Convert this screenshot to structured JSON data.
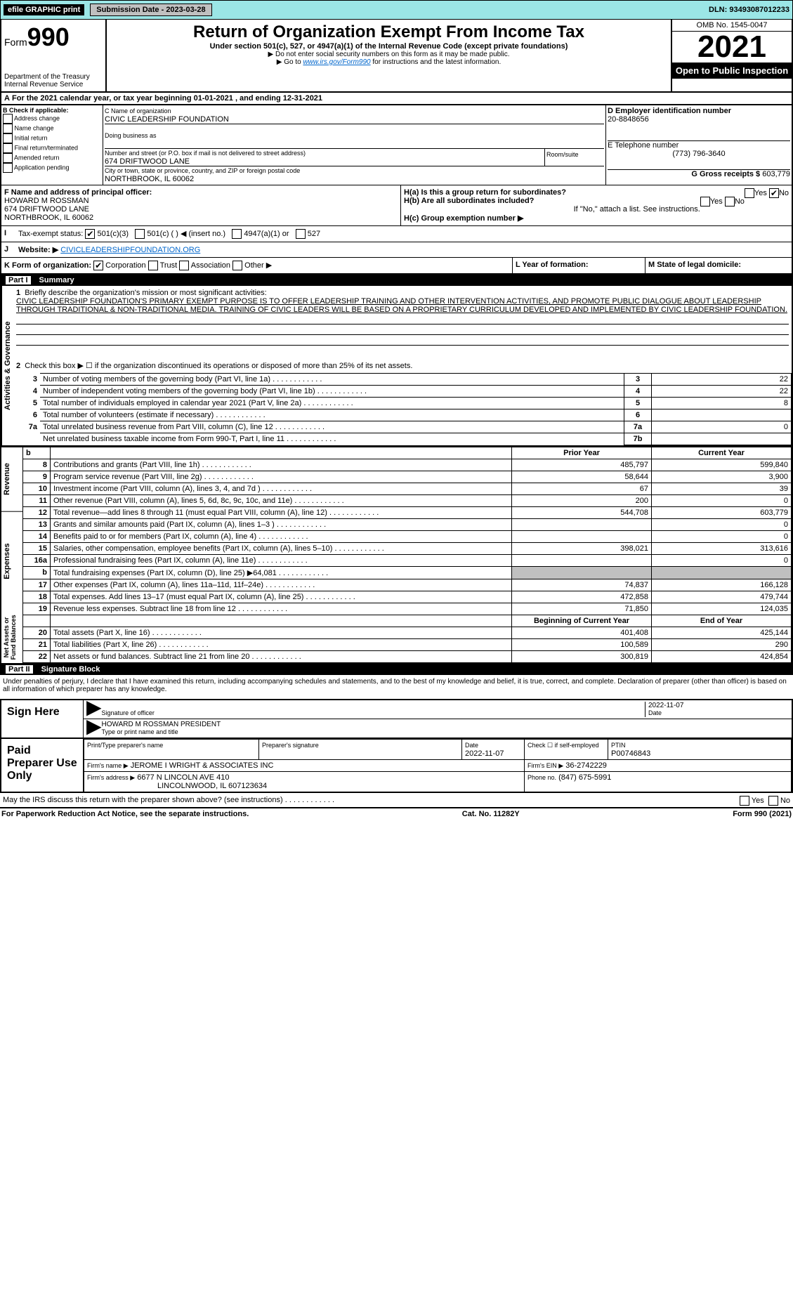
{
  "topbar": {
    "efile": "efile GRAPHIC print",
    "sub_label": "Submission Date - 2023-03-28",
    "dln": "DLN: 93493087012233"
  },
  "header": {
    "form_word": "Form",
    "form_num": "990",
    "title": "Return of Organization Exempt From Income Tax",
    "sub1": "Under section 501(c), 527, or 4947(a)(1) of the Internal Revenue Code (except private foundations)",
    "sub2": "▶ Do not enter social security numbers on this form as it may be made public.",
    "sub3": "▶ Go to www.irs.gov/Form990 for instructions and the latest information.",
    "dept": "Department of the Treasury\nInternal Revenue Service",
    "omb": "OMB No. 1545-0047",
    "year": "2021",
    "otp": "Open to Public Inspection"
  },
  "A": {
    "text": "For the 2021 calendar year, or tax year beginning 01-01-2021     , and ending 12-31-2021"
  },
  "B": {
    "label": "B Check if applicable:",
    "items": [
      "Address change",
      "Name change",
      "Initial return",
      "Final return/terminated",
      "Amended return",
      "Application pending"
    ]
  },
  "C": {
    "name_lbl": "C Name of organization",
    "name": "CIVIC LEADERSHIP FOUNDATION",
    "dba_lbl": "Doing business as",
    "dba": "",
    "addr_lbl": "Number and street (or P.O. box if mail is not delivered to street address)",
    "room_lbl": "Room/suite",
    "addr": "674 DRIFTWOOD LANE",
    "city_lbl": "City or town, state or province, country, and ZIP or foreign postal code",
    "city": "NORTHBROOK, IL  60062"
  },
  "D": {
    "lbl": "D Employer identification number",
    "val": "20-8848656"
  },
  "E": {
    "lbl": "E Telephone number",
    "val": "(773) 796-3640"
  },
  "G": {
    "lbl": "G Gross receipts $",
    "val": "603,779"
  },
  "F": {
    "lbl": "F  Name and address of principal officer:",
    "name": "HOWARD M ROSSMAN",
    "addr": "674 DRIFTWOOD LANE",
    "city": "NORTHBROOK, IL  60062"
  },
  "H": {
    "a_lbl": "H(a)  Is this a group return for subordinates?",
    "a_yes": "Yes",
    "a_no": "No",
    "b_lbl": "H(b)  Are all subordinates included?",
    "b_yes": "Yes",
    "b_no": "No",
    "b_note": "If \"No,\" attach a list. See instructions.",
    "c_lbl": "H(c)  Group exemption number ▶"
  },
  "I": {
    "lbl": "Tax-exempt status:",
    "o1": "501(c)(3)",
    "o2": "501(c) (   ) ◀ (insert no.)",
    "o3": "4947(a)(1) or",
    "o4": "527"
  },
  "J": {
    "lbl": "Website: ▶",
    "val": "CIVICLEADERSHIPFOUNDATION.ORG"
  },
  "K": {
    "lbl": "K Form of organization:",
    "o1": "Corporation",
    "o2": "Trust",
    "o3": "Association",
    "o4": "Other ▶"
  },
  "L": {
    "lbl": "L Year of formation:",
    "val": ""
  },
  "M": {
    "lbl": "M State of legal domicile:",
    "val": ""
  },
  "part1": {
    "num": "Part I",
    "title": "Summary"
  },
  "summary": {
    "q1": "Briefly describe the organization's mission or most significant activities:",
    "mission": "CIVIC LEADERSHIP FOUNDATION'S PRIMARY EXEMPT PURPOSE IS TO OFFER LEADERSHIP TRAINING AND OTHER INTERVENTION ACTIVITIES, AND PROMOTE PUBLIC DIALOGUE ABOUT LEADERSHIP THROUGH TRADITIONAL & NON-TRADITIONAL MEDIA. TRAINING OF CIVIC LEADERS WILL BE BASED ON A PROPRIETARY CURRICULUM DEVELOPED AND IMPLEMENTED BY CIVIC LEADERSHIP FOUNDATION.",
    "q2": "Check this box ▶ ☐  if the organization discontinued its operations or disposed of more than 25% of its net assets.",
    "lines": [
      {
        "n": "3",
        "t": "Number of voting members of the governing body (Part VI, line 1a)",
        "box": "3",
        "v": "22"
      },
      {
        "n": "4",
        "t": "Number of independent voting members of the governing body (Part VI, line 1b)",
        "box": "4",
        "v": "22"
      },
      {
        "n": "5",
        "t": "Total number of individuals employed in calendar year 2021 (Part V, line 2a)",
        "box": "5",
        "v": "8"
      },
      {
        "n": "6",
        "t": "Total number of volunteers (estimate if necessary)",
        "box": "6",
        "v": ""
      },
      {
        "n": "7a",
        "t": "Total unrelated business revenue from Part VIII, column (C), line 12",
        "box": "7a",
        "v": "0"
      },
      {
        "n": "",
        "t": "Net unrelated business taxable income from Form 990-T, Part I, line 11",
        "box": "7b",
        "v": ""
      }
    ]
  },
  "cols": {
    "py": "Prior Year",
    "cy": "Current Year",
    "boy": "Beginning of Current Year",
    "eoy": "End of Year"
  },
  "revenue": {
    "label": "Revenue",
    "rows": [
      {
        "n": "8",
        "t": "Contributions and grants (Part VIII, line 1h)",
        "py": "485,797",
        "cy": "599,840"
      },
      {
        "n": "9",
        "t": "Program service revenue (Part VIII, line 2g)",
        "py": "58,644",
        "cy": "3,900"
      },
      {
        "n": "10",
        "t": "Investment income (Part VIII, column (A), lines 3, 4, and 7d )",
        "py": "67",
        "cy": "39"
      },
      {
        "n": "11",
        "t": "Other revenue (Part VIII, column (A), lines 5, 6d, 8c, 9c, 10c, and 11e)",
        "py": "200",
        "cy": "0"
      },
      {
        "n": "12",
        "t": "Total revenue—add lines 8 through 11 (must equal Part VIII, column (A), line 12)",
        "py": "544,708",
        "cy": "603,779"
      }
    ]
  },
  "expenses": {
    "label": "Expenses",
    "rows": [
      {
        "n": "13",
        "t": "Grants and similar amounts paid (Part IX, column (A), lines 1–3 )",
        "py": "",
        "cy": "0"
      },
      {
        "n": "14",
        "t": "Benefits paid to or for members (Part IX, column (A), line 4)",
        "py": "",
        "cy": "0"
      },
      {
        "n": "15",
        "t": "Salaries, other compensation, employee benefits (Part IX, column (A), lines 5–10)",
        "py": "398,021",
        "cy": "313,616"
      },
      {
        "n": "16a",
        "t": "Professional fundraising fees (Part IX, column (A), line 11e)",
        "py": "",
        "cy": "0"
      },
      {
        "n": "b",
        "t": "Total fundraising expenses (Part IX, column (D), line 25) ▶64,081",
        "py": "GREY",
        "cy": "GREY"
      },
      {
        "n": "17",
        "t": "Other expenses (Part IX, column (A), lines 11a–11d, 11f–24e)",
        "py": "74,837",
        "cy": "166,128"
      },
      {
        "n": "18",
        "t": "Total expenses. Add lines 13–17 (must equal Part IX, column (A), line 25)",
        "py": "472,858",
        "cy": "479,744"
      },
      {
        "n": "19",
        "t": "Revenue less expenses. Subtract line 18 from line 12",
        "py": "71,850",
        "cy": "124,035"
      }
    ]
  },
  "netassets": {
    "label": "Net Assets or Fund Balances",
    "rows": [
      {
        "n": "20",
        "t": "Total assets (Part X, line 16)",
        "py": "401,408",
        "cy": "425,144"
      },
      {
        "n": "21",
        "t": "Total liabilities (Part X, line 26)",
        "py": "100,589",
        "cy": "290"
      },
      {
        "n": "22",
        "t": "Net assets or fund balances. Subtract line 21 from line 20",
        "py": "300,819",
        "cy": "424,854"
      }
    ]
  },
  "part2": {
    "num": "Part II",
    "title": "Signature Block"
  },
  "sig": {
    "perjury": "Under penalties of perjury, I declare that I have examined this return, including accompanying schedules and statements, and to the best of my knowledge and belief, it is true, correct, and complete. Declaration of preparer (other than officer) is based on all information of which preparer has any knowledge.",
    "sign_here": "Sign Here",
    "sig_officer": "Signature of officer",
    "date_lbl": "Date",
    "date": "2022-11-07",
    "name": "HOWARD M ROSSMAN  PRESIDENT",
    "name_lbl": "Type or print name and title",
    "paid": "Paid Preparer Use Only",
    "pp_name_lbl": "Print/Type preparer's name",
    "pp_sig_lbl": "Preparer's signature",
    "pp_date_lbl": "Date",
    "pp_date": "2022-11-07",
    "pp_chk": "Check ☐ if self-employed",
    "ptin_lbl": "PTIN",
    "ptin": "P00746843",
    "firm_name_lbl": "Firm's name    ▶",
    "firm_name": "JEROME I WRIGHT & ASSOCIATES INC",
    "firm_ein_lbl": "Firm's EIN ▶",
    "firm_ein": "36-2742229",
    "firm_addr_lbl": "Firm's address ▶",
    "firm_addr": "6677 N LINCOLN AVE 410",
    "firm_city": "LINCOLNWOOD, IL  607123634",
    "phone_lbl": "Phone no.",
    "phone": "(847) 675-5991",
    "may": "May the IRS discuss this return with the preparer shown above? (see instructions)",
    "yes": "Yes",
    "no": "No"
  },
  "footer": {
    "left": "For Paperwork Reduction Act Notice, see the separate instructions.",
    "mid": "Cat. No. 11282Y",
    "right": "Form 990 (2021)"
  }
}
